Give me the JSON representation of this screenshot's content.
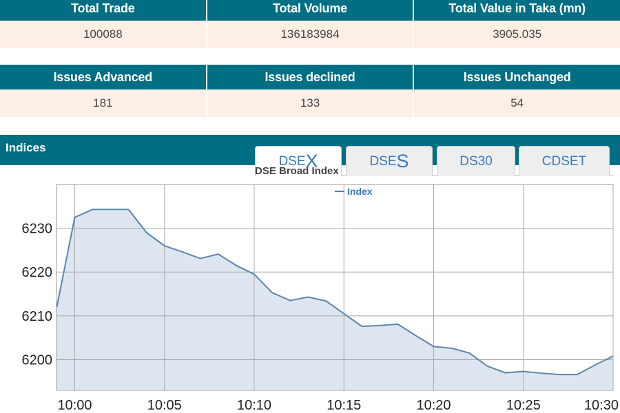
{
  "summary_top": {
    "headers": [
      "Total Trade",
      "Total Volume",
      "Total Value in Taka (mn)"
    ],
    "values": [
      "100088",
      "136183984",
      "3905.035"
    ]
  },
  "summary_issues": {
    "headers": [
      "Issues Advanced",
      "Issues declined",
      "Issues Unchanged"
    ],
    "values": [
      "181",
      "133",
      "54"
    ]
  },
  "indices": {
    "title": "Indices",
    "tabs": [
      {
        "prefix": "DSE",
        "suffix": "X",
        "active": true
      },
      {
        "prefix": "DSE",
        "suffix": "S",
        "active": false
      },
      {
        "label": "DS30",
        "active": false
      },
      {
        "label": "CDSET",
        "active": false
      }
    ]
  },
  "colors": {
    "header_bg": "#006f84",
    "row_bg": "#fcefe6",
    "line": "#5b84ad",
    "fill": "#dde6f0",
    "tab_text": "#3a79b8"
  },
  "chart_data": {
    "type": "area",
    "title": "DSE Broad Index",
    "legend": "top-center",
    "series": [
      {
        "name": "Index",
        "x": [
          "09:59",
          "10:00",
          "10:01",
          "10:02",
          "10:03",
          "10:04",
          "10:05",
          "10:06",
          "10:07",
          "10:08",
          "10:09",
          "10:10",
          "10:11",
          "10:12",
          "10:13",
          "10:14",
          "10:15",
          "10:16",
          "10:17",
          "10:18",
          "10:19",
          "10:20",
          "10:21",
          "10:22",
          "10:23",
          "10:24",
          "10:25",
          "10:26",
          "10:27",
          "10:28",
          "10:29",
          "10:30"
        ],
        "values": [
          6212,
          6232.5,
          6234.3,
          6234.3,
          6234.3,
          6229,
          6226,
          6224.6,
          6223.1,
          6224.1,
          6221.5,
          6219.5,
          6215.3,
          6213.5,
          6214.3,
          6213.4,
          6210.5,
          6207.6,
          6207.8,
          6208.1,
          6205.5,
          6203,
          6202.6,
          6201.5,
          6198.5,
          6197,
          6197.3,
          6196.9,
          6196.6,
          6196.6,
          6198.8,
          6200.8
        ]
      }
    ],
    "xticks": [
      "10:00",
      "10:05",
      "10:10",
      "10:15",
      "10:20",
      "10:25",
      "10:30"
    ],
    "yticks": [
      "6200",
      "6210",
      "6220",
      "6230"
    ],
    "ylim": [
      6193,
      6240
    ],
    "grid": true
  }
}
